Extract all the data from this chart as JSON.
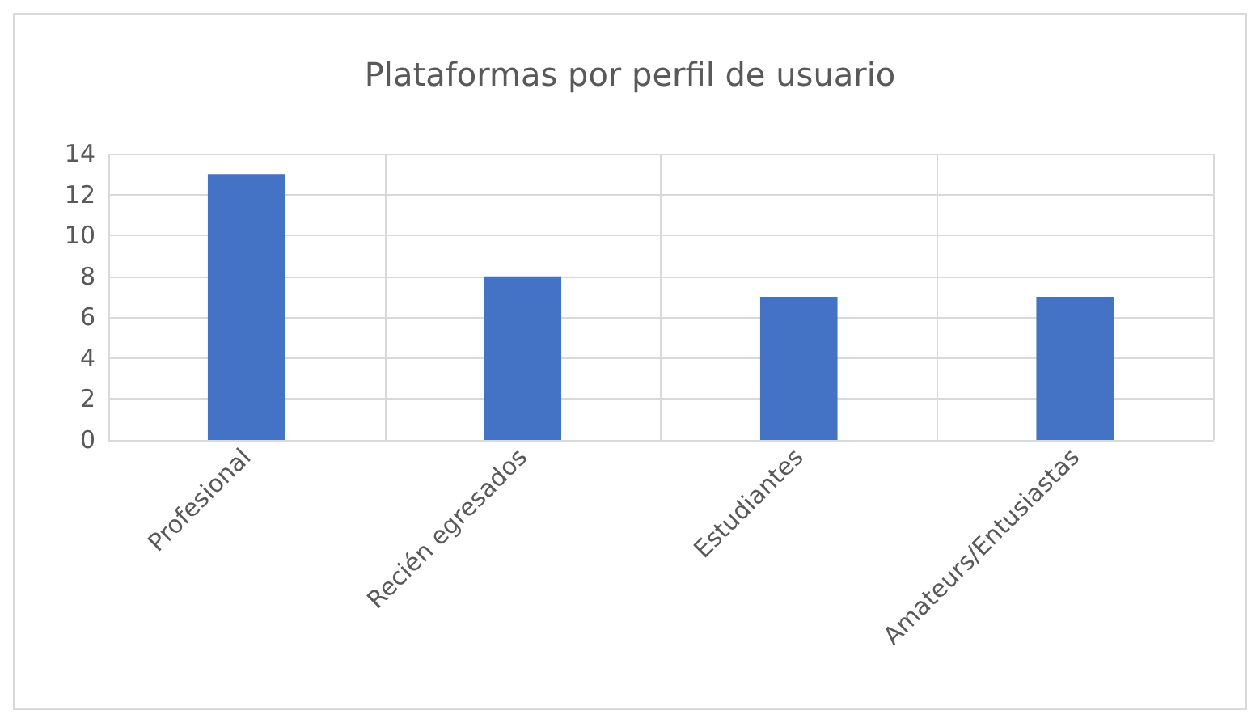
{
  "chart_data": {
    "type": "bar",
    "title": "Plataformas por perfil de usuario",
    "categories": [
      "Profesional",
      "Recién egresados",
      "Estudiantes",
      "Amateurs/Entusiastas"
    ],
    "values": [
      13,
      8,
      7,
      7
    ],
    "color": "#4472c4",
    "ylim": [
      0,
      14
    ],
    "yticks": [
      0,
      2,
      4,
      6,
      8,
      10,
      12,
      14
    ],
    "grid": true
  }
}
